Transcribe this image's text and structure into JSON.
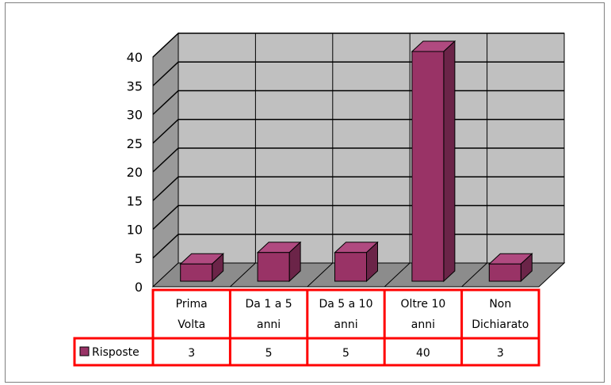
{
  "chart_data": {
    "type": "bar",
    "categories": [
      [
        "Prima",
        "Volta"
      ],
      [
        "Da 1 a 5",
        "anni"
      ],
      [
        "Da 5 a 10",
        "anni"
      ],
      [
        "Oltre 10",
        "anni"
      ],
      [
        "Non",
        "Dichiarato"
      ]
    ],
    "series": [
      {
        "name": "Risposte",
        "values": [
          3,
          5,
          5,
          40,
          3
        ]
      }
    ],
    "ylim": [
      0,
      40
    ],
    "yticks": [
      0,
      5,
      10,
      15,
      20,
      25,
      30,
      35,
      40
    ],
    "grid": true,
    "legend": "in data table, left",
    "data_table": true
  },
  "colors": {
    "bar_front": "#993366",
    "bar_top": "#b04a80",
    "bar_side": "#6b2448",
    "wall": "#c0c0c0",
    "floor": "#8c8c8c",
    "table_border": "#ff0000"
  }
}
